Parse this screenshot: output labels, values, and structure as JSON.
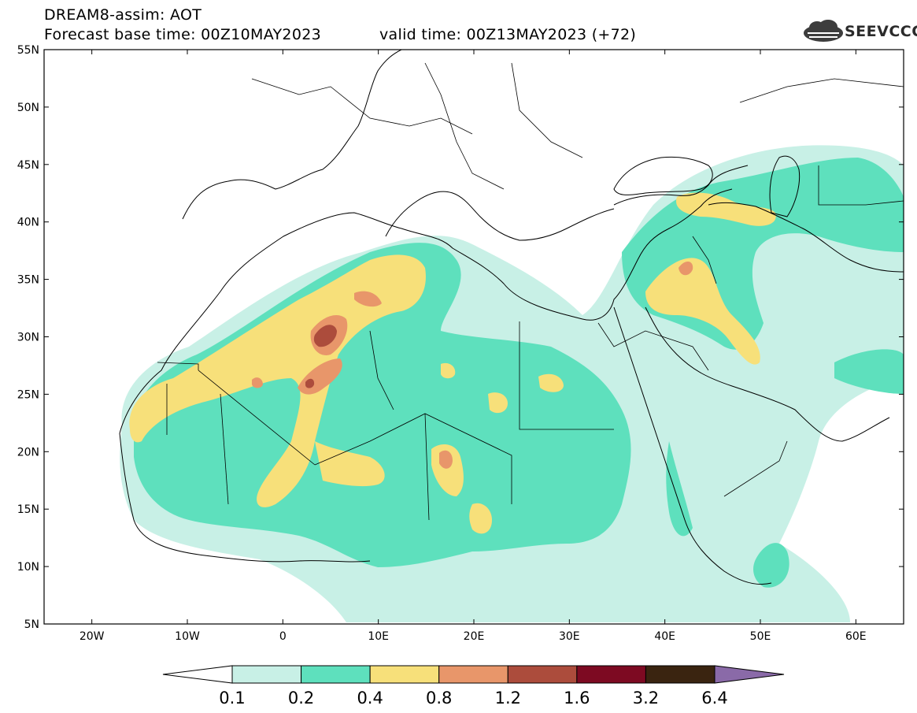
{
  "header": {
    "line1": "DREAM8-assim: AOT",
    "line2": "Forecast base time: 00Z10MAY2023",
    "valid": "valid time: 00Z13MAY2023 (+72)",
    "logo_text": "SEEVCCC"
  },
  "map": {
    "lat_labels": [
      "55N",
      "50N",
      "45N",
      "40N",
      "35N",
      "30N",
      "25N",
      "20N",
      "15N",
      "10N",
      "5N"
    ],
    "lon_labels": [
      "20W",
      "10W",
      "0",
      "10E",
      "20E",
      "30E",
      "40E",
      "50E",
      "60E"
    ],
    "lon_range": [
      -25,
      65
    ],
    "lat_range": [
      5,
      55
    ]
  },
  "legend": {
    "labels": [
      "0.1",
      "0.2",
      "0.4",
      "0.8",
      "1.2",
      "1.6",
      "3.2",
      "6.4"
    ],
    "colors": [
      "#ffffff",
      "#c8f0e6",
      "#5ee0bd",
      "#f7e07a",
      "#e8966a",
      "#ac4c3c",
      "#7d0a22",
      "#3a2410",
      "#8a6aa8"
    ]
  }
}
